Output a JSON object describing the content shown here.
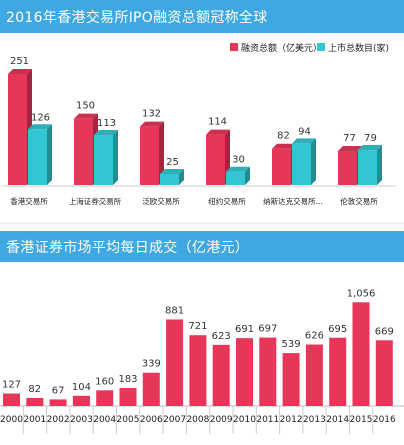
{
  "charts": [
    {
      "title": "2016年香港交易所IPO融资总额冠称全球",
      "type": "bar",
      "categories": [
        "香港交易所",
        "上海证券交易所",
        "泛欧交易所",
        "纽约交易所",
        "纳斯达克交易所...",
        "伦敦交易所"
      ],
      "series": [
        {
          "name": "融资总额（亿美元）",
          "values": [
            251,
            150,
            132,
            114,
            82,
            77
          ]
        },
        {
          "name": "上市总数目(家)",
          "values": [
            126,
            113,
            25,
            30,
            94,
            79
          ]
        }
      ],
      "legend": "top-right",
      "colors": {
        "series1": "#e8365a",
        "series2": "#33c6d2"
      }
    },
    {
      "title": "香港证券市场平均每日成交（亿港元）",
      "type": "bar",
      "categories": [
        "2000",
        "2001",
        "2002",
        "2003",
        "2004",
        "2005",
        "2006",
        "2007",
        "2008",
        "2009",
        "2010",
        "2011",
        "2012",
        "2013",
        "2014",
        "2015",
        "2016"
      ],
      "values": [
        127,
        82,
        67,
        104,
        160,
        183,
        339,
        881,
        721,
        623,
        691,
        697,
        539,
        626,
        695,
        1056,
        669
      ],
      "value_labels": [
        "127",
        "82",
        "67",
        "104",
        "160",
        "183",
        "339",
        "881",
        "721",
        "623",
        "691",
        "697",
        "539",
        "626",
        "695",
        "1,056",
        "669"
      ],
      "color": "#e8365a"
    }
  ],
  "chart_data": [
    {
      "type": "bar",
      "title": "2016年香港交易所IPO融资总额冠称全球",
      "categories": [
        "香港交易所",
        "上海证券交易所",
        "泛欧交易所",
        "纽约交易所",
        "纳斯达克交易所...",
        "伦敦交易所"
      ],
      "series": [
        {
          "name": "融资总额（亿美元）",
          "values": [
            251,
            150,
            132,
            114,
            82,
            77
          ]
        },
        {
          "name": "上市总数目(家)",
          "values": [
            126,
            113,
            25,
            30,
            94,
            79
          ]
        }
      ],
      "legend": "top-right"
    },
    {
      "type": "bar",
      "title": "香港证券市场平均每日成交（亿港元）",
      "categories": [
        "2000",
        "2001",
        "2002",
        "2003",
        "2004",
        "2005",
        "2006",
        "2007",
        "2008",
        "2009",
        "2010",
        "2011",
        "2012",
        "2013",
        "2014",
        "2015",
        "2016"
      ],
      "values": [
        127,
        82,
        67,
        104,
        160,
        183,
        339,
        881,
        721,
        623,
        691,
        697,
        539,
        626,
        695,
        1056,
        669
      ]
    }
  ]
}
